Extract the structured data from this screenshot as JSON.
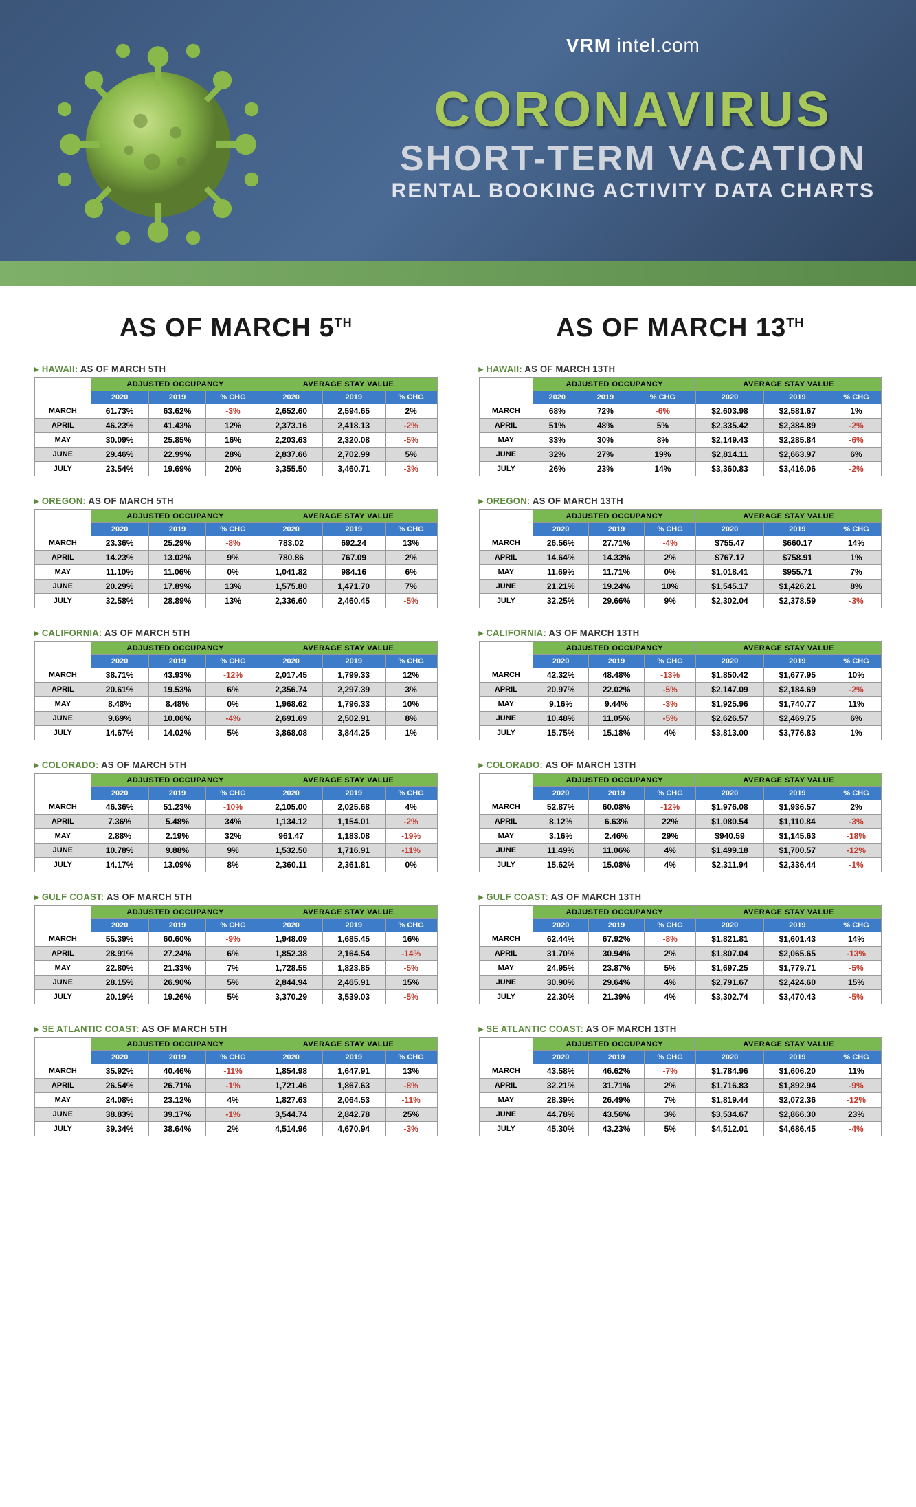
{
  "header": {
    "site": "VRM intel.com",
    "title1": "CORONAVIRUS",
    "title2": "SHORT-TERM VACATION",
    "title3": "RENTAL BOOKING ACTIVITY DATA CHARTS"
  },
  "colors": {
    "header_bg": "#3b5579",
    "green_bar": "#7fb069",
    "green_header": "#7ab852",
    "blue_header": "#3d7cc9",
    "neg": "#c0392b",
    "row_alt": "#d9d9d9"
  },
  "col_titles": [
    "AS OF MARCH 5",
    "AS OF MARCH 13"
  ],
  "group_headers": [
    "ADJUSTED OCCUPANCY",
    "AVERAGE STAY VALUE"
  ],
  "sub_headers": [
    "2020",
    "2019",
    "% CHG",
    "2020",
    "2019",
    "% CHG"
  ],
  "months": [
    "MARCH",
    "APRIL",
    "MAY",
    "JUNE",
    "JULY"
  ],
  "left": [
    {
      "name": "HAWAII",
      "asof": "AS OF MARCH 5TH",
      "rows": [
        [
          "61.73%",
          "63.62%",
          "-3%",
          "2,652.60",
          "2,594.65",
          "2%"
        ],
        [
          "46.23%",
          "41.43%",
          "12%",
          "2,373.16",
          "2,418.13",
          "-2%"
        ],
        [
          "30.09%",
          "25.85%",
          "16%",
          "2,203.63",
          "2,320.08",
          "-5%"
        ],
        [
          "29.46%",
          "22.99%",
          "28%",
          "2,837.66",
          "2,702.99",
          "5%"
        ],
        [
          "23.54%",
          "19.69%",
          "20%",
          "3,355.50",
          "3,460.71",
          "-3%"
        ]
      ]
    },
    {
      "name": "OREGON",
      "asof": "AS OF MARCH 5TH",
      "rows": [
        [
          "23.36%",
          "25.29%",
          "-8%",
          "783.02",
          "692.24",
          "13%"
        ],
        [
          "14.23%",
          "13.02%",
          "9%",
          "780.86",
          "767.09",
          "2%"
        ],
        [
          "11.10%",
          "11.06%",
          "0%",
          "1,041.82",
          "984.16",
          "6%"
        ],
        [
          "20.29%",
          "17.89%",
          "13%",
          "1,575.80",
          "1,471.70",
          "7%"
        ],
        [
          "32.58%",
          "28.89%",
          "13%",
          "2,336.60",
          "2,460.45",
          "-5%"
        ]
      ]
    },
    {
      "name": "CALIFORNIA",
      "asof": "AS OF MARCH 5TH",
      "rows": [
        [
          "38.71%",
          "43.93%",
          "-12%",
          "2,017.45",
          "1,799.33",
          "12%"
        ],
        [
          "20.61%",
          "19.53%",
          "6%",
          "2,356.74",
          "2,297.39",
          "3%"
        ],
        [
          "8.48%",
          "8.48%",
          "0%",
          "1,968.62",
          "1,796.33",
          "10%"
        ],
        [
          "9.69%",
          "10.06%",
          "-4%",
          "2,691.69",
          "2,502.91",
          "8%"
        ],
        [
          "14.67%",
          "14.02%",
          "5%",
          "3,868.08",
          "3,844.25",
          "1%"
        ]
      ]
    },
    {
      "name": "COLORADO",
      "asof": "AS OF MARCH 5TH",
      "rows": [
        [
          "46.36%",
          "51.23%",
          "-10%",
          "2,105.00",
          "2,025.68",
          "4%"
        ],
        [
          "7.36%",
          "5.48%",
          "34%",
          "1,134.12",
          "1,154.01",
          "-2%"
        ],
        [
          "2.88%",
          "2.19%",
          "32%",
          "961.47",
          "1,183.08",
          "-19%"
        ],
        [
          "10.78%",
          "9.88%",
          "9%",
          "1,532.50",
          "1,716.91",
          "-11%"
        ],
        [
          "14.17%",
          "13.09%",
          "8%",
          "2,360.11",
          "2,361.81",
          "0%"
        ]
      ]
    },
    {
      "name": "GULF COAST",
      "asof": "AS OF MARCH 5TH",
      "rows": [
        [
          "55.39%",
          "60.60%",
          "-9%",
          "1,948.09",
          "1,685.45",
          "16%"
        ],
        [
          "28.91%",
          "27.24%",
          "6%",
          "1,852.38",
          "2,164.54",
          "-14%"
        ],
        [
          "22.80%",
          "21.33%",
          "7%",
          "1,728.55",
          "1,823.85",
          "-5%"
        ],
        [
          "28.15%",
          "26.90%",
          "5%",
          "2,844.94",
          "2,465.91",
          "15%"
        ],
        [
          "20.19%",
          "19.26%",
          "5%",
          "3,370.29",
          "3,539.03",
          "-5%"
        ]
      ]
    },
    {
      "name": "SE ATLANTIC COAST",
      "asof": "AS OF MARCH 5TH",
      "rows": [
        [
          "35.92%",
          "40.46%",
          "-11%",
          "1,854.98",
          "1,647.91",
          "13%"
        ],
        [
          "26.54%",
          "26.71%",
          "-1%",
          "1,721.46",
          "1,867.63",
          "-8%"
        ],
        [
          "24.08%",
          "23.12%",
          "4%",
          "1,827.63",
          "2,064.53",
          "-11%"
        ],
        [
          "38.83%",
          "39.17%",
          "-1%",
          "3,544.74",
          "2,842.78",
          "25%"
        ],
        [
          "39.34%",
          "38.64%",
          "2%",
          "4,514.96",
          "4,670.94",
          "-3%"
        ]
      ]
    }
  ],
  "right": [
    {
      "name": "HAWAII",
      "asof": "AS OF MARCH 13TH",
      "rows": [
        [
          "68%",
          "72%",
          "-6%",
          "$2,603.98",
          "$2,581.67",
          "1%"
        ],
        [
          "51%",
          "48%",
          "5%",
          "$2,335.42",
          "$2,384.89",
          "-2%"
        ],
        [
          "33%",
          "30%",
          "8%",
          "$2,149.43",
          "$2,285.84",
          "-6%"
        ],
        [
          "32%",
          "27%",
          "19%",
          "$2,814.11",
          "$2,663.97",
          "6%"
        ],
        [
          "26%",
          "23%",
          "14%",
          "$3,360.83",
          "$3,416.06",
          "-2%"
        ]
      ]
    },
    {
      "name": "OREGON",
      "asof": "AS OF MARCH 13TH",
      "rows": [
        [
          "26.56%",
          "27.71%",
          "-4%",
          "$755.47",
          "$660.17",
          "14%"
        ],
        [
          "14.64%",
          "14.33%",
          "2%",
          "$767.17",
          "$758.91",
          "1%"
        ],
        [
          "11.69%",
          "11.71%",
          "0%",
          "$1,018.41",
          "$955.71",
          "7%"
        ],
        [
          "21.21%",
          "19.24%",
          "10%",
          "$1,545.17",
          "$1,426.21",
          "8%"
        ],
        [
          "32.25%",
          "29.66%",
          "9%",
          "$2,302.04",
          "$2,378.59",
          "-3%"
        ]
      ]
    },
    {
      "name": "CALIFORNIA",
      "asof": "AS OF MARCH 13TH",
      "rows": [
        [
          "42.32%",
          "48.48%",
          "-13%",
          "$1,850.42",
          "$1,677.95",
          "10%"
        ],
        [
          "20.97%",
          "22.02%",
          "-5%",
          "$2,147.09",
          "$2,184.69",
          "-2%"
        ],
        [
          "9.16%",
          "9.44%",
          "-3%",
          "$1,925.96",
          "$1,740.77",
          "11%"
        ],
        [
          "10.48%",
          "11.05%",
          "-5%",
          "$2,626.57",
          "$2,469.75",
          "6%"
        ],
        [
          "15.75%",
          "15.18%",
          "4%",
          "$3,813.00",
          "$3,776.83",
          "1%"
        ]
      ]
    },
    {
      "name": "COLORADO",
      "asof": "AS OF MARCH 13TH",
      "rows": [
        [
          "52.87%",
          "60.08%",
          "-12%",
          "$1,976.08",
          "$1,936.57",
          "2%"
        ],
        [
          "8.12%",
          "6.63%",
          "22%",
          "$1,080.54",
          "$1,110.84",
          "-3%"
        ],
        [
          "3.16%",
          "2.46%",
          "29%",
          "$940.59",
          "$1,145.63",
          "-18%"
        ],
        [
          "11.49%",
          "11.06%",
          "4%",
          "$1,499.18",
          "$1,700.57",
          "-12%"
        ],
        [
          "15.62%",
          "15.08%",
          "4%",
          "$2,311.94",
          "$2,336.44",
          "-1%"
        ]
      ]
    },
    {
      "name": "GULF COAST",
      "asof": "AS OF MARCH 13TH",
      "rows": [
        [
          "62.44%",
          "67.92%",
          "-8%",
          "$1,821.81",
          "$1,601.43",
          "14%"
        ],
        [
          "31.70%",
          "30.94%",
          "2%",
          "$1,807.04",
          "$2,065.65",
          "-13%"
        ],
        [
          "24.95%",
          "23.87%",
          "5%",
          "$1,697.25",
          "$1,779.71",
          "-5%"
        ],
        [
          "30.90%",
          "29.64%",
          "4%",
          "$2,791.67",
          "$2,424.60",
          "15%"
        ],
        [
          "22.30%",
          "21.39%",
          "4%",
          "$3,302.74",
          "$3,470.43",
          "-5%"
        ]
      ]
    },
    {
      "name": "SE ATLANTIC COAST",
      "asof": "AS OF MARCH 13TH",
      "rows": [
        [
          "43.58%",
          "46.62%",
          "-7%",
          "$1,784.96",
          "$1,606.20",
          "11%"
        ],
        [
          "32.21%",
          "31.71%",
          "2%",
          "$1,716.83",
          "$1,892.94",
          "-9%"
        ],
        [
          "28.39%",
          "26.49%",
          "7%",
          "$1,819.44",
          "$2,072.36",
          "-12%"
        ],
        [
          "44.78%",
          "43.56%",
          "3%",
          "$3,534.67",
          "$2,866.30",
          "23%"
        ],
        [
          "45.30%",
          "43.23%",
          "5%",
          "$4,512.01",
          "$4,686.45",
          "-4%"
        ]
      ]
    }
  ]
}
